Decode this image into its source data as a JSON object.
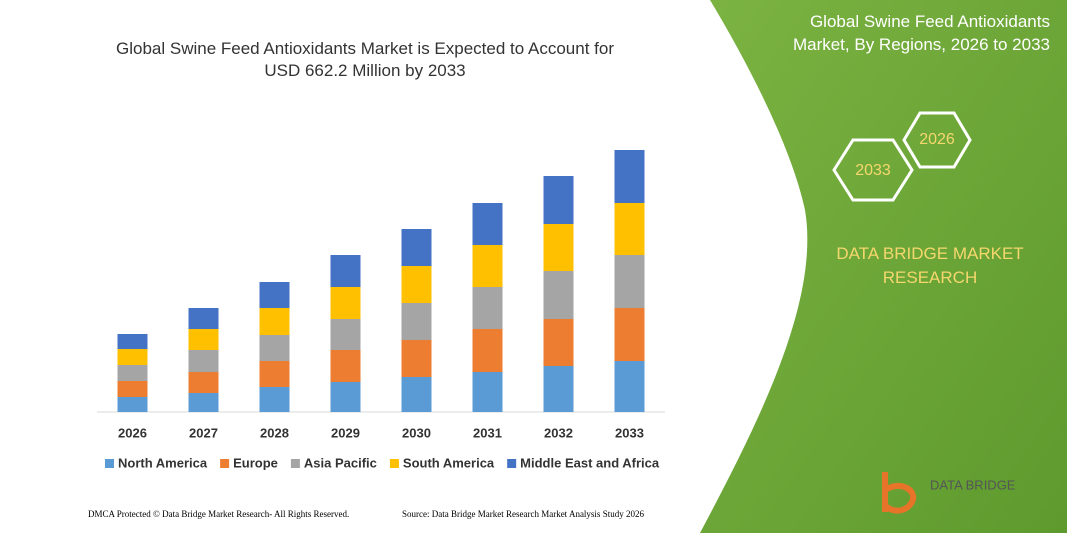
{
  "chart_data": {
    "type": "stacked-bar",
    "title": "Global Swine Feed Antioxidants Market is Expected to Account for USD 662.2 Million by 2033",
    "categories": [
      "2026",
      "2027",
      "2028",
      "2029",
      "2030",
      "2031",
      "2032",
      "2033"
    ],
    "ylim": [
      0,
      262
    ],
    "series": [
      {
        "name": "North America",
        "color": "#5b9bd5",
        "values": [
          15,
          19,
          25,
          30,
          35,
          40,
          46,
          51
        ]
      },
      {
        "name": "Europe",
        "color": "#ed7d31",
        "values": [
          16,
          21,
          26,
          32,
          37,
          43,
          47,
          53
        ]
      },
      {
        "name": "Asia Pacific",
        "color": "#a5a5a5",
        "values": [
          16,
          22,
          26,
          31,
          37,
          42,
          48,
          53
        ]
      },
      {
        "name": "South America",
        "color": "#ffc000",
        "values": [
          16,
          21,
          27,
          32,
          37,
          42,
          47,
          52
        ]
      },
      {
        "name": "Middle East and Africa",
        "color": "#4472c4",
        "values": [
          15,
          21,
          26,
          32,
          37,
          42,
          48,
          53
        ]
      }
    ]
  },
  "panel": {
    "title": "Global Swine Feed Antioxidants Market, By Regions, 2026 to 2033",
    "hex_left": "2033",
    "hex_right": "2026",
    "brand": "DATA BRIDGE MARKET RESEARCH"
  },
  "footer": {
    "left": "DMCA Protected © Data Bridge Market Research- All Rights Reserved.",
    "right": "Source: Data Bridge Market Research Market Analysis Study 2026"
  },
  "logo": {
    "text": "DATA BRIDGE"
  }
}
